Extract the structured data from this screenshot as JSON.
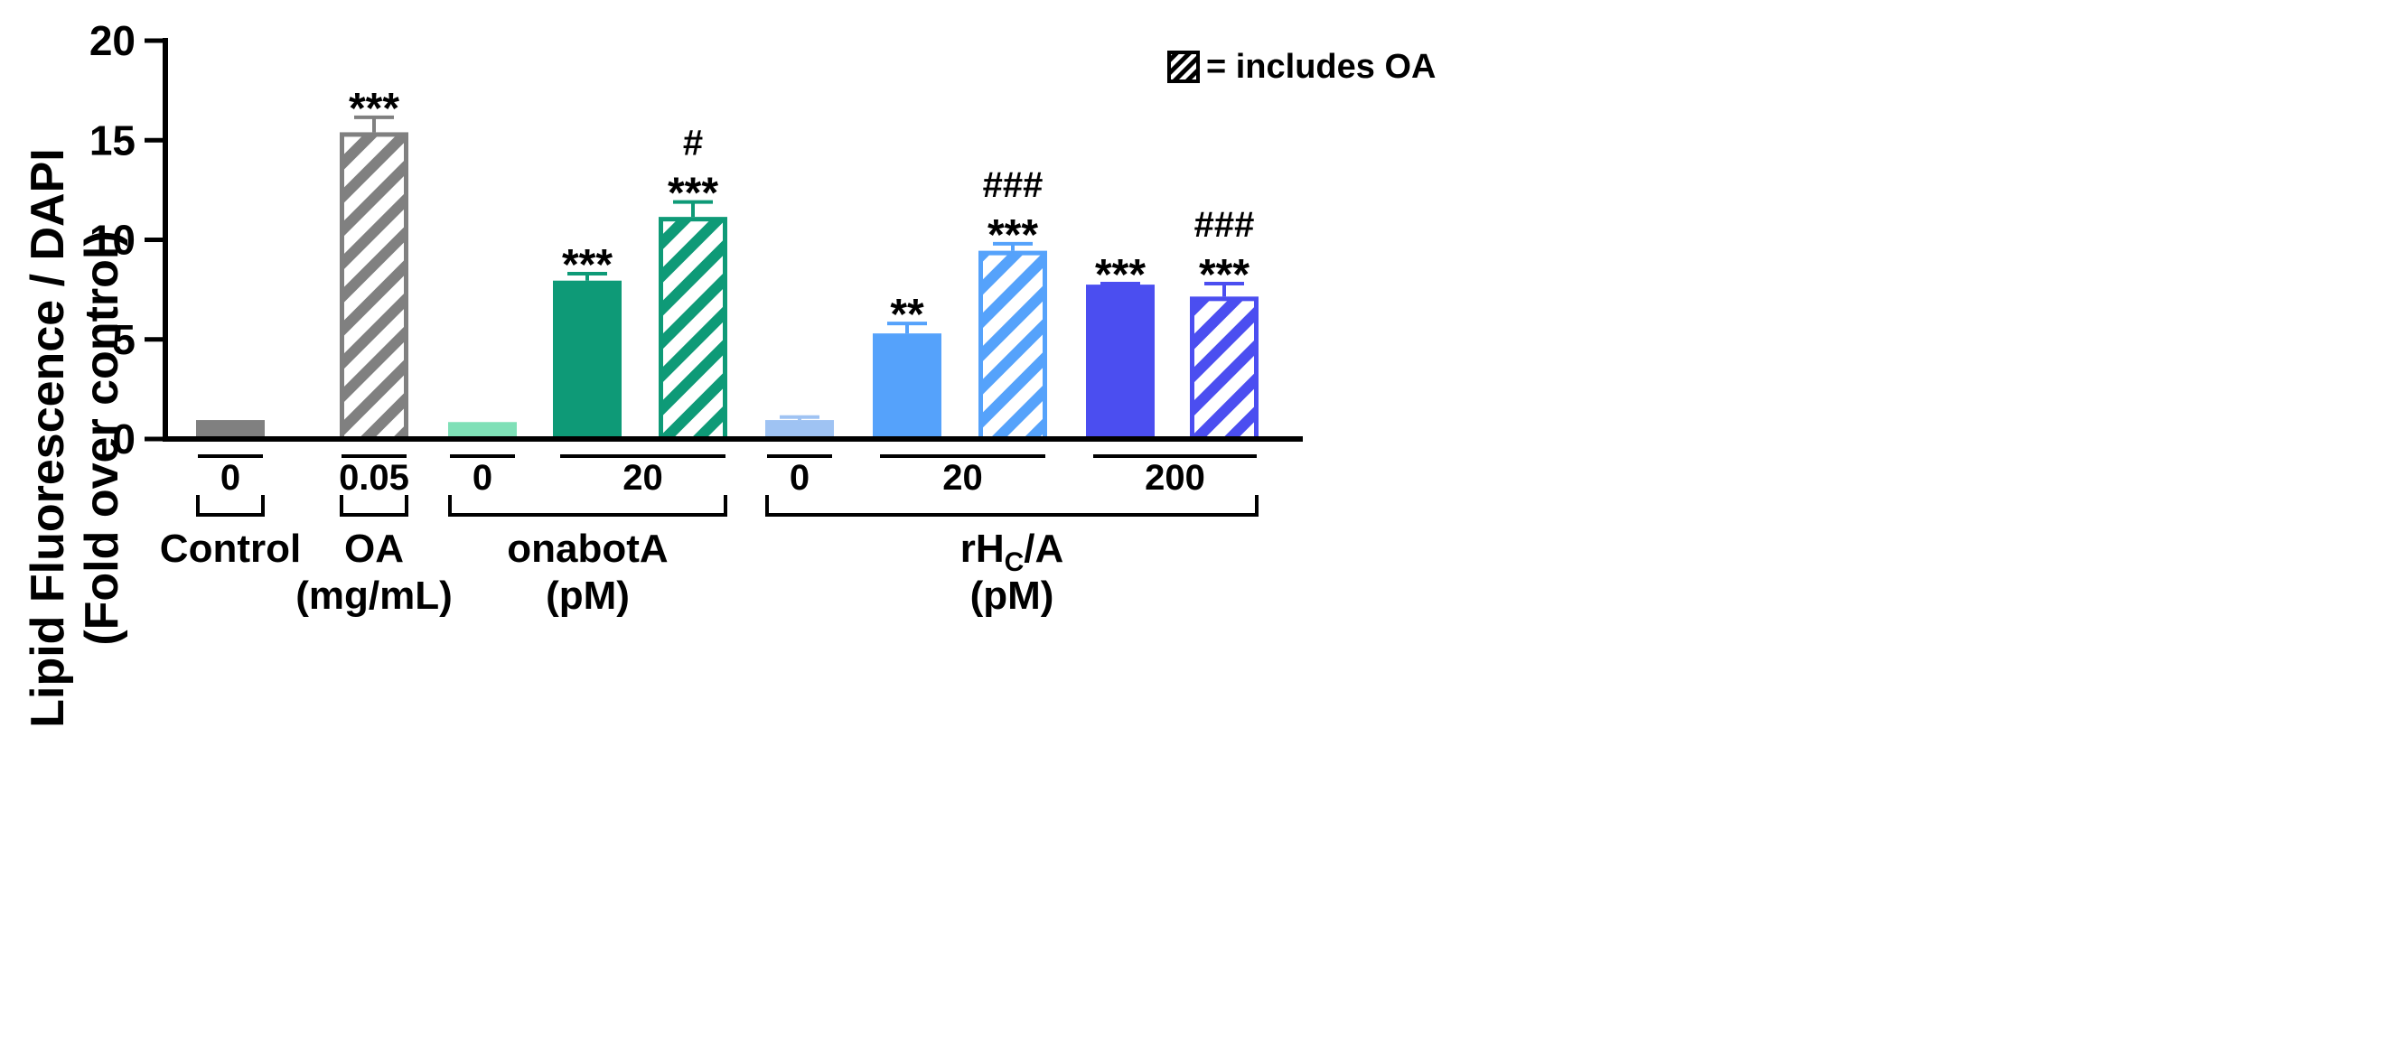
{
  "chart_data": {
    "type": "bar",
    "ylabel_line1": "Lipid Fluorescence / DAPI",
    "ylabel_line2": "(Fold over control)",
    "xlabel": "",
    "ylim": [
      0,
      20
    ],
    "yticks": [
      0,
      5,
      10,
      15,
      20
    ],
    "grid": false,
    "legend": {
      "placement": "top-right",
      "text": "= includes OA"
    },
    "bars": [
      {
        "name": "Control 0",
        "value": 0.95,
        "error": 0,
        "color": "#808080",
        "hatched": false,
        "sig": []
      },
      {
        "name": "OA 0.05",
        "value": 15.4,
        "error": 0.75,
        "color": "#808080",
        "hatched": true,
        "sig": [
          "***"
        ]
      },
      {
        "name": "onabotA 0",
        "value": 0.85,
        "error": 0,
        "color": "#7fe0b7",
        "hatched": false,
        "sig": []
      },
      {
        "name": "onabotA 20",
        "value": 7.95,
        "error": 0.35,
        "color": "#0e9a77",
        "hatched": false,
        "sig": [
          "***"
        ]
      },
      {
        "name": "onabotA 20 + OA",
        "value": 11.15,
        "error": 0.75,
        "color": "#0e9a77",
        "hatched": true,
        "sig": [
          "***",
          "#"
        ]
      },
      {
        "name": "rHC/A 0",
        "value": 0.95,
        "error": 0.15,
        "color": "#9fc3f3",
        "hatched": false,
        "sig": []
      },
      {
        "name": "rHC/A 20",
        "value": 5.3,
        "error": 0.5,
        "color": "#55a2fb",
        "hatched": false,
        "sig": [
          "**"
        ]
      },
      {
        "name": "rHC/A 20 + OA",
        "value": 9.45,
        "error": 0.35,
        "color": "#55a2fb",
        "hatched": true,
        "sig": [
          "***",
          "###"
        ]
      },
      {
        "name": "rHC/A 200",
        "value": 7.75,
        "error": 0.05,
        "color": "#4b4ef0",
        "hatched": false,
        "sig": [
          "***"
        ]
      },
      {
        "name": "rHC/A 200 + OA",
        "value": 7.15,
        "error": 0.65,
        "color": "#4b4ef0",
        "hatched": true,
        "sig": [
          "***",
          "###"
        ]
      }
    ],
    "dose_labels": [
      {
        "text": "0",
        "bars": [
          0,
          0
        ]
      },
      {
        "text": "0.05",
        "bars": [
          1,
          1
        ]
      },
      {
        "text": "0",
        "bars": [
          2,
          2
        ]
      },
      {
        "text": "20",
        "bars": [
          3,
          4
        ]
      },
      {
        "text": "0",
        "bars": [
          5,
          5
        ]
      },
      {
        "text": "20",
        "bars": [
          6,
          7
        ]
      },
      {
        "text": "200",
        "bars": [
          8,
          9
        ]
      }
    ],
    "groups": [
      {
        "lines": [
          "Control"
        ],
        "bars": [
          0,
          0
        ],
        "bracket": true
      },
      {
        "lines": [
          "OA",
          "(mg/mL)"
        ],
        "bars": [
          1,
          1
        ],
        "bracket": true
      },
      {
        "lines": [
          "onabotA",
          "(pM)"
        ],
        "bars": [
          2,
          4
        ],
        "bracket": true
      },
      {
        "lines": [
          "rHC/A",
          "(pM)"
        ],
        "rich_main": "rH",
        "rich_sub": "C",
        "rich_tail": "/A",
        "bars": [
          5,
          9
        ],
        "bracket": true
      }
    ]
  }
}
